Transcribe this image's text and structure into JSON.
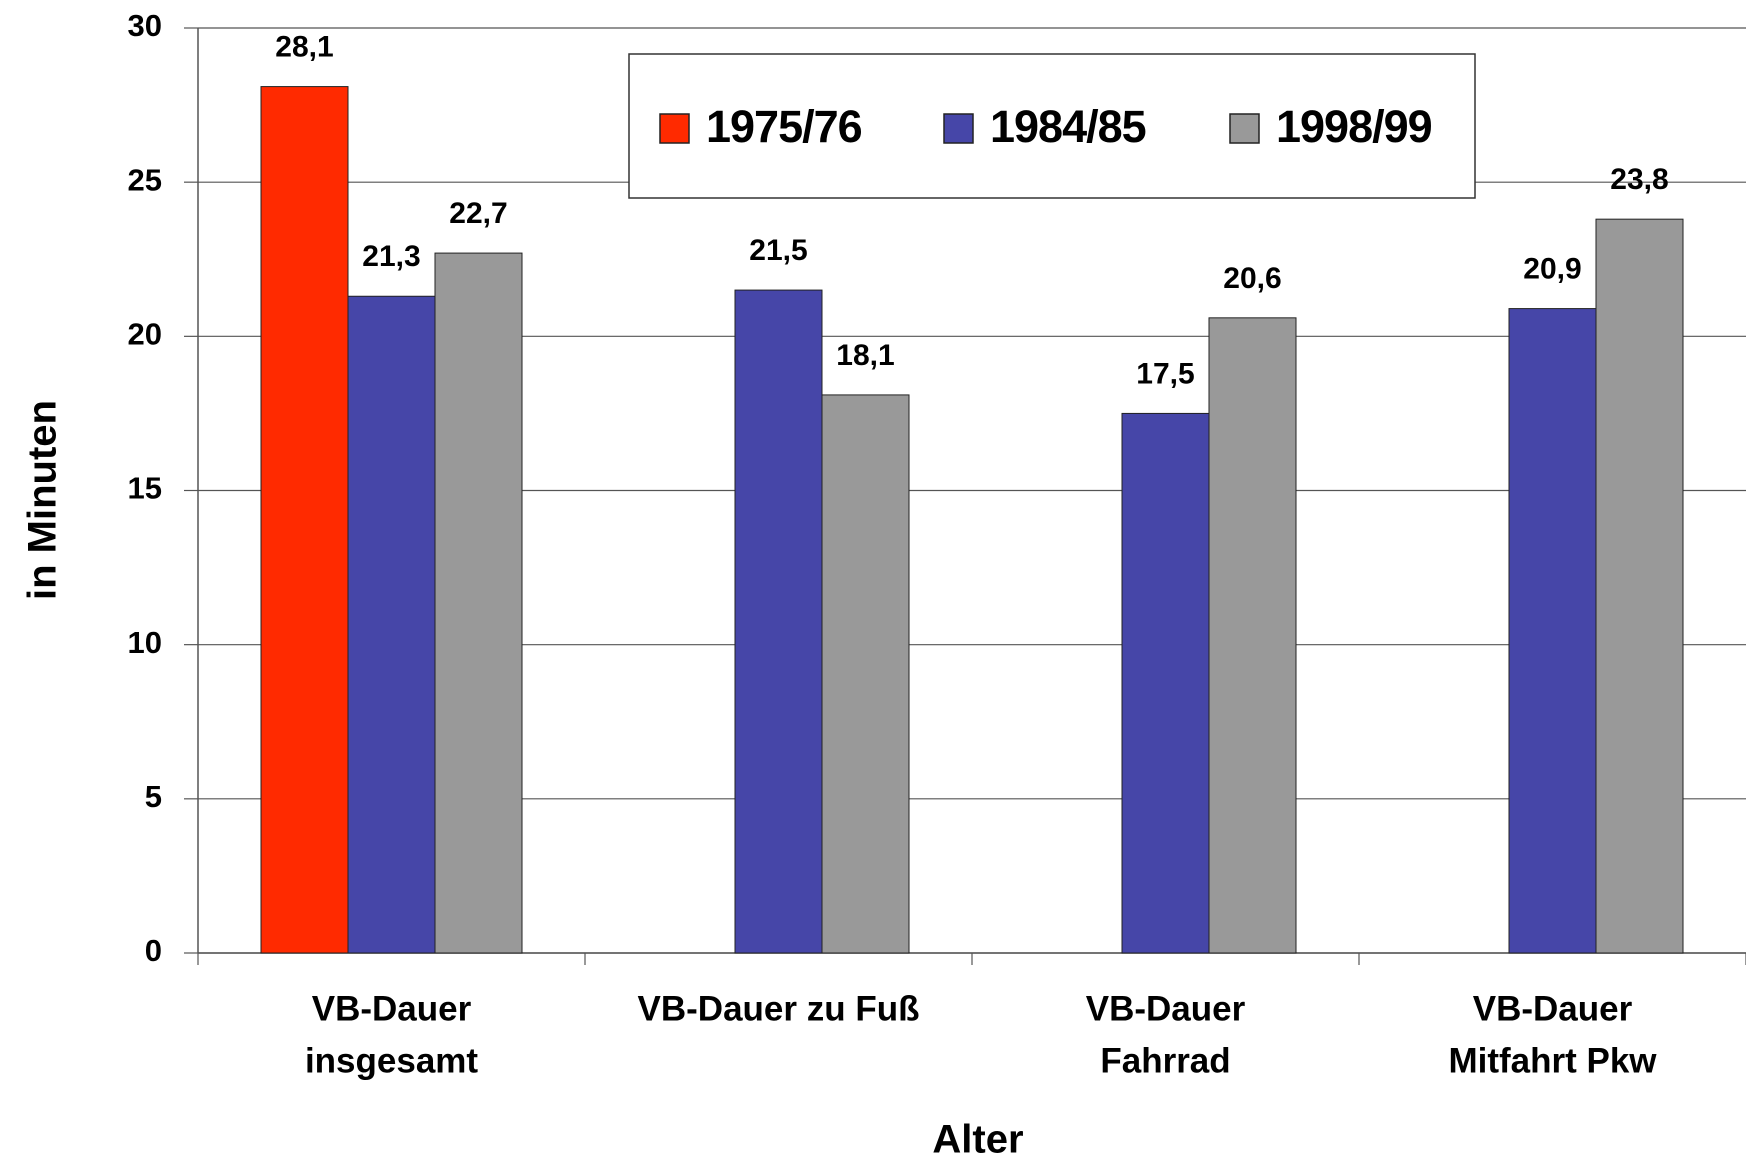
{
  "chart_data": {
    "type": "bar",
    "categories": [
      [
        "VB-Dauer",
        "insgesamt"
      ],
      [
        "VB-Dauer zu Fuß"
      ],
      [
        "VB-Dauer",
        "Fahrrad"
      ],
      [
        "VB-Dauer",
        "Mitfahrt Pkw"
      ]
    ],
    "series": [
      {
        "name": "1975/76",
        "color": "#ff2a00",
        "values": [
          28.1,
          null,
          null,
          null
        ],
        "value_labels": [
          "28,1",
          null,
          null,
          null
        ]
      },
      {
        "name": "1984/85",
        "color": "#4646a8",
        "values": [
          21.3,
          21.5,
          17.5,
          20.9
        ],
        "value_labels": [
          "21,3",
          "21,5",
          "17,5",
          "20,9"
        ]
      },
      {
        "name": "1998/99",
        "color": "#999999",
        "values": [
          22.7,
          18.1,
          20.6,
          23.8
        ],
        "value_labels": [
          "22,7",
          "18,1",
          "20,6",
          "23,8"
        ]
      }
    ],
    "ylabel": "in Minuten",
    "xlabel": "Alter",
    "ylim": [
      0,
      30
    ],
    "yticks": [
      0,
      5,
      10,
      15,
      20,
      25,
      30
    ],
    "grid": true,
    "legend": "top"
  }
}
